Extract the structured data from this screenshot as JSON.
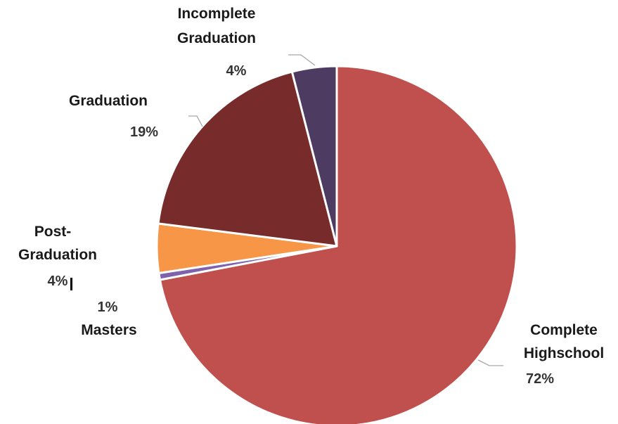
{
  "chart_data": {
    "type": "pie",
    "title": "",
    "start_angle_deg": 0,
    "direction": "clockwise",
    "legend": "none",
    "slices": [
      {
        "label": "Complete Highschool",
        "name_lines": [
          "Complete",
          "Highschool"
        ],
        "value": 72,
        "pct_label": "72%",
        "color": "#c0504d"
      },
      {
        "label": "Masters",
        "name_lines": [
          "Masters"
        ],
        "value": 0.6,
        "pct_label": "1%",
        "color": "#7e62ad"
      },
      {
        "label": "Post-Graduation",
        "name_lines": [
          "Post-",
          "Graduation"
        ],
        "value": 4.4,
        "pct_label": "4%",
        "color": "#f79646"
      },
      {
        "label": "Graduation",
        "name_lines": [
          "Graduation"
        ],
        "value": 19,
        "pct_label": "19%",
        "color": "#772b2b"
      },
      {
        "label": "Incomplete Graduation",
        "name_lines": [
          "Incomplete",
          "Graduation"
        ],
        "value": 4,
        "pct_label": "4%",
        "color": "#4e3b62"
      }
    ]
  }
}
